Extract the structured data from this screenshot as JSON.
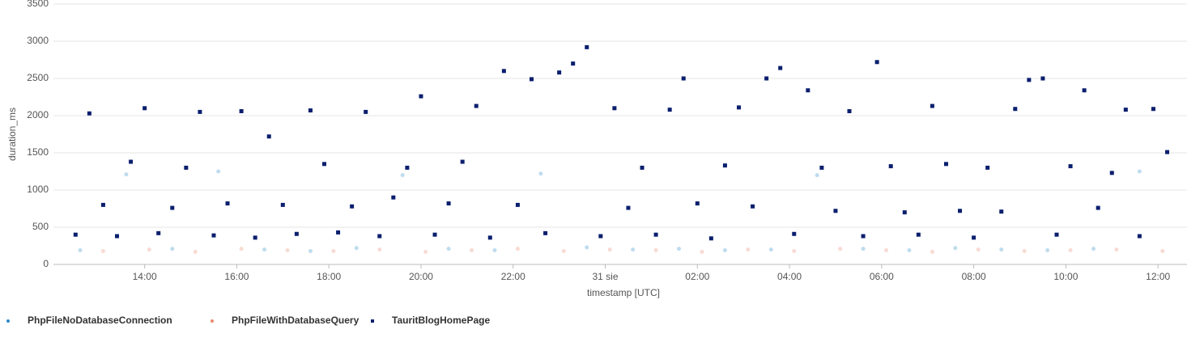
{
  "chart_data": {
    "type": "scatter",
    "x_label": "timestamp [UTC]",
    "y_label": "duration_ms",
    "xlim": [
      12.02,
      36.63
    ],
    "xticks": [
      {
        "value": 14,
        "label": "14:00"
      },
      {
        "value": 16,
        "label": "16:00"
      },
      {
        "value": 18,
        "label": "18:00"
      },
      {
        "value": 20,
        "label": "20:00"
      },
      {
        "value": 22,
        "label": "22:00"
      },
      {
        "value": 24,
        "label": "31 sie"
      },
      {
        "value": 26,
        "label": "02:00"
      },
      {
        "value": 28,
        "label": "04:00"
      },
      {
        "value": 30,
        "label": "06:00"
      },
      {
        "value": 32,
        "label": "08:00"
      },
      {
        "value": 34,
        "label": "10:00"
      },
      {
        "value": 36,
        "label": "12:00"
      }
    ],
    "ylim": [
      0,
      3500
    ],
    "yticks": [
      0,
      500,
      1000,
      1500,
      2000,
      2500,
      3000,
      3500
    ],
    "grid": true,
    "legend": "bottom-left",
    "series": [
      {
        "name": "PhpFileNoDatabaseConnection",
        "color": "#2a8ac8",
        "marker": "circle",
        "x": [
          12.6,
          13.6,
          14.6,
          15.6,
          16.6,
          17.6,
          18.6,
          19.6,
          20.6,
          21.6,
          22.6,
          23.6,
          24.6,
          25.6,
          26.6,
          27.6,
          28.6,
          29.6,
          30.6,
          31.6,
          32.6,
          33.6,
          34.6,
          35.6
        ],
        "values": [
          190,
          1210,
          210,
          1250,
          200,
          180,
          220,
          1200,
          210,
          190,
          1220,
          230,
          200,
          210,
          190,
          200,
          1200,
          210,
          190,
          220,
          200,
          190,
          210,
          1250
        ]
      },
      {
        "name": "PhpFileWithDatabaseQuery",
        "color": "#e8876c",
        "marker": "circle",
        "x": [
          13.1,
          14.1,
          15.1,
          16.1,
          17.1,
          18.1,
          19.1,
          20.1,
          21.1,
          22.1,
          23.1,
          24.1,
          25.1,
          26.1,
          27.1,
          28.1,
          29.1,
          30.1,
          31.1,
          32.1,
          33.1,
          34.1,
          35.1,
          36.1
        ],
        "values": [
          180,
          200,
          170,
          210,
          190,
          180,
          200,
          170,
          190,
          210,
          180,
          200,
          190,
          170,
          200,
          180,
          210,
          190,
          170,
          200,
          180,
          190,
          200,
          180
        ]
      },
      {
        "name": "TauritBlogHomePage",
        "color": "#0b1f6e",
        "marker": "square",
        "x": [
          12.5,
          12.8,
          13.1,
          13.4,
          13.7,
          14.0,
          14.3,
          14.6,
          14.9,
          15.2,
          15.5,
          15.8,
          16.1,
          16.4,
          16.7,
          17.0,
          17.3,
          17.6,
          17.9,
          18.2,
          18.5,
          18.8,
          19.1,
          19.4,
          19.7,
          20.0,
          20.3,
          20.6,
          20.9,
          21.2,
          21.5,
          21.8,
          22.1,
          22.4,
          22.7,
          23.0,
          23.3,
          23.6,
          23.9,
          24.2,
          24.5,
          24.8,
          25.1,
          25.4,
          25.7,
          26.0,
          26.3,
          26.6,
          26.9,
          27.2,
          27.5,
          27.8,
          28.1,
          28.4,
          28.7,
          29.0,
          29.3,
          29.6,
          29.9,
          30.2,
          30.5,
          30.8,
          31.1,
          31.4,
          31.7,
          32.0,
          32.3,
          32.6,
          32.9,
          33.2,
          33.5,
          33.8,
          34.1,
          34.4,
          34.7,
          35.0,
          35.3,
          35.6,
          35.9,
          36.2
        ],
        "values": [
          400,
          2030,
          800,
          380,
          1380,
          2100,
          420,
          760,
          1300,
          2050,
          390,
          820,
          2060,
          360,
          1720,
          800,
          410,
          2070,
          1350,
          430,
          780,
          2050,
          380,
          900,
          1300,
          2260,
          400,
          820,
          1380,
          2130,
          360,
          2600,
          800,
          2490,
          420,
          2580,
          2700,
          2920,
          380,
          2100,
          760,
          1300,
          400,
          2080,
          2500,
          820,
          350,
          1330,
          2110,
          780,
          2500,
          2640,
          410,
          2340,
          1300,
          720,
          2060,
          380,
          2720,
          1320,
          700,
          400,
          2130,
          1350,
          720,
          360,
          1300,
          710,
          2090,
          2480,
          2500,
          400,
          1320,
          2340,
          760,
          1230,
          2080,
          380,
          2090,
          1510
        ]
      }
    ]
  }
}
